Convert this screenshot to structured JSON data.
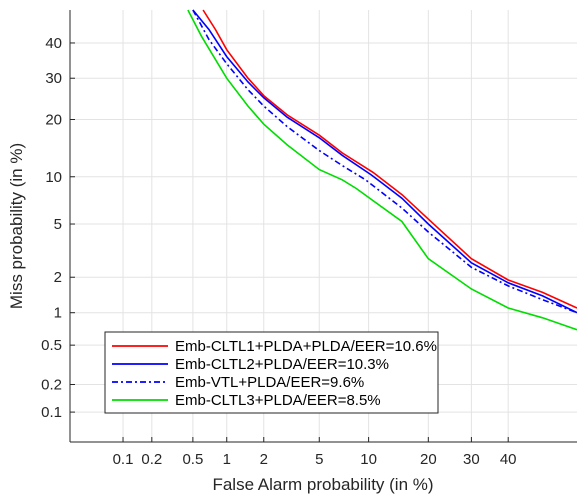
{
  "chart_data": {
    "type": "line",
    "title": "",
    "xlabel": "False Alarm probability (in %)",
    "ylabel": "Miss probability (in %)",
    "scale": "probit (normal deviate)",
    "xlim": [
      0.025,
      60
    ],
    "ylim": [
      0.045,
      50
    ],
    "x_ticks": [
      0.1,
      0.2,
      0.5,
      1,
      2,
      5,
      10,
      20,
      30,
      40
    ],
    "x_tick_labels": [
      "0.1",
      "0.2",
      "0.5",
      "1",
      "2",
      "5",
      "10",
      "20",
      "30",
      "40"
    ],
    "y_ticks": [
      0.1,
      0.2,
      0.5,
      1,
      2,
      5,
      10,
      20,
      30,
      40
    ],
    "y_tick_labels": [
      "0.1",
      "0.2",
      "0.5",
      "1",
      "2",
      "5",
      "10",
      "20",
      "30",
      "40"
    ],
    "grid": true,
    "legend_position": "bottom-left",
    "series": [
      {
        "name": "Emb-CLTL1+PLDA+PLDA/EER=10.6%",
        "color": "#ff0000",
        "line_style": "solid",
        "x": [
          0.62,
          0.8,
          1.0,
          1.5,
          2.0,
          3.0,
          5.0,
          7.0,
          10.6,
          15.0,
          20.0,
          30.0,
          40.0,
          50.0,
          60.0
        ],
        "y": [
          50.0,
          44.0,
          38.0,
          30.0,
          25.5,
          21.0,
          16.8,
          13.6,
          10.6,
          7.8,
          5.4,
          2.8,
          1.9,
          1.5,
          1.1
        ]
      },
      {
        "name": "Emb-CLTL2+PLDA/EER=10.3%",
        "color": "#0000ff",
        "line_style": "solid",
        "x": [
          0.5,
          0.7,
          1.0,
          1.5,
          2.0,
          3.0,
          5.0,
          7.0,
          10.3,
          15.0,
          20.0,
          30.0,
          40.0,
          50.0,
          60.0
        ],
        "y": [
          50.0,
          44.0,
          36.0,
          29.0,
          25.0,
          20.5,
          16.3,
          13.2,
          10.3,
          7.4,
          5.0,
          2.6,
          1.8,
          1.4,
          1.0
        ]
      },
      {
        "name": "Emb-VTL+PLDA/EER=9.6%",
        "color": "#0000ff",
        "line_style": "dashdot",
        "x": [
          0.5,
          0.7,
          1.0,
          1.5,
          2.0,
          3.0,
          5.0,
          7.0,
          9.6,
          15.0,
          20.0,
          30.0,
          40.0,
          50.0,
          60.0
        ],
        "y": [
          50.0,
          41.0,
          34.0,
          27.0,
          23.0,
          18.5,
          14.0,
          11.6,
          9.6,
          6.4,
          4.4,
          2.4,
          1.7,
          1.3,
          1.0
        ]
      },
      {
        "name": "Emb-CLTL3+PLDA/EER=8.5%",
        "color": "#00dd00",
        "line_style": "solid",
        "x": [
          0.45,
          0.6,
          1.0,
          1.5,
          2.0,
          3.0,
          5.0,
          7.0,
          8.5,
          15.0,
          20.0,
          30.0,
          40.0,
          50.0,
          60.0
        ],
        "y": [
          50.0,
          42.0,
          30.0,
          23.0,
          19.0,
          15.0,
          11.0,
          9.6,
          8.5,
          5.2,
          2.8,
          1.6,
          1.1,
          0.9,
          0.7
        ]
      }
    ]
  }
}
